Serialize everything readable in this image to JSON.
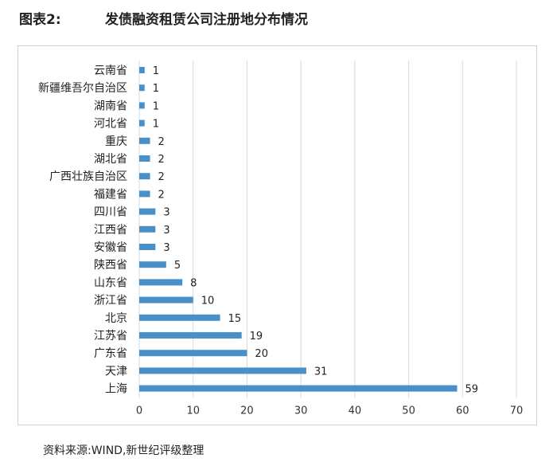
{
  "header": {
    "label": "图表2:",
    "title": "发债融资租赁公司注册地分布情况"
  },
  "chart_data": {
    "type": "bar",
    "orientation": "horizontal",
    "categories": [
      "云南省",
      "新疆维吾尔自治区",
      "湖南省",
      "河北省",
      "重庆",
      "湖北省",
      "广西壮族自治区",
      "福建省",
      "四川省",
      "江西省",
      "安徽省",
      "陕西省",
      "山东省",
      "浙江省",
      "北京",
      "江苏省",
      "广东省",
      "天津",
      "上海"
    ],
    "values": [
      1,
      1,
      1,
      1,
      2,
      2,
      2,
      2,
      3,
      3,
      3,
      5,
      8,
      10,
      15,
      19,
      20,
      31,
      59
    ],
    "xlim": [
      0,
      70
    ],
    "xticks": [
      "0",
      "10",
      "20",
      "30",
      "40",
      "50",
      "60",
      "70"
    ],
    "grid": "vertical",
    "bar_color": "#4a90c8",
    "gridline_color": "#d9d9d9",
    "data_labels": true
  },
  "footer": {
    "source": "资料来源:WIND,新世纪评级整理"
  }
}
